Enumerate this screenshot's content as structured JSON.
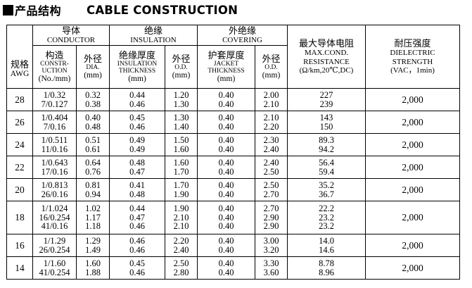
{
  "heading": {
    "cn": "产品结构",
    "en": "CABLE CONSTRUCTION"
  },
  "header": {
    "conductor_cn": "导体",
    "conductor_en": "CONDUCTOR",
    "insulation_cn": "绝缘",
    "insulation_en": "INSULATION",
    "covering_cn": "外绝缘",
    "covering_en": "COVERING",
    "resistance_cn": "最大导体电阻",
    "resistance_en1": "MAX.COND.",
    "resistance_en2": "RESISTANCE",
    "resistance_unit": "(Ω/km,20℃,DC)",
    "dielectric_cn": "耐压强度",
    "dielectric_en1": "DIELECTRIC",
    "dielectric_en2": "STRENGTH",
    "dielectric_unit": "(VAC，1min)",
    "awg_cn": "规格",
    "awg_en": "AWG",
    "constr_cn": "构造",
    "constr_en1": "CONSTR-",
    "constr_en2": "UCTION",
    "constr_unit": "(No./mm)",
    "dia_cn": "外径",
    "dia_en": "DIA.",
    "dia_unit": "(mm)",
    "ins_thk_cn": "绝缘厚度",
    "ins_thk_en1": "INSULATION",
    "ins_thk_en2": "THICKNESS",
    "ins_thk_unit": "(mm)",
    "ins_od_cn": "外径",
    "ins_od_en": "O.D.",
    "ins_od_unit": "(mm)",
    "jkt_thk_cn": "护套厚度",
    "jkt_thk_en1": "JACKET",
    "jkt_thk_en2": "THICKNESS",
    "jkt_thk_unit": "(mm)",
    "jkt_od_cn": "外径",
    "jkt_od_en": "O.D.",
    "jkt_od_unit": "(mm)"
  },
  "rows": [
    {
      "awg": "28",
      "construction": [
        "1/0.32",
        "7/0.127"
      ],
      "dia": [
        "0.32",
        "0.38"
      ],
      "ins_thk": [
        "0.44",
        "0.46"
      ],
      "ins_od": [
        "1.20",
        "1.30"
      ],
      "jkt_thk": [
        "0.40",
        "0.40"
      ],
      "jkt_od": [
        "2.00",
        "2.10"
      ],
      "resistance": [
        "227",
        "239"
      ],
      "dielectric": "2,000"
    },
    {
      "awg": "26",
      "construction": [
        "1/0.404",
        "7/0.16"
      ],
      "dia": [
        "0.40",
        "0.48"
      ],
      "ins_thk": [
        "0.45",
        "0.46"
      ],
      "ins_od": [
        "1.30",
        "1.40"
      ],
      "jkt_thk": [
        "0.40",
        "0.40"
      ],
      "jkt_od": [
        "2.10",
        "2.20"
      ],
      "resistance": [
        "143",
        "150"
      ],
      "dielectric": "2,000"
    },
    {
      "awg": "24",
      "construction": [
        "1/0.511",
        "11/0.16"
      ],
      "dia": [
        "0.51",
        "0.61"
      ],
      "ins_thk": [
        "0.49",
        "0.49"
      ],
      "ins_od": [
        "1.50",
        "1.60"
      ],
      "jkt_thk": [
        "0.40",
        "0.40"
      ],
      "jkt_od": [
        "2.30",
        "2.40"
      ],
      "resistance": [
        "89.3",
        "94.2"
      ],
      "dielectric": "2,000"
    },
    {
      "awg": "22",
      "construction": [
        "1/0.643",
        "17/0.16"
      ],
      "dia": [
        "0.64",
        "0.76"
      ],
      "ins_thk": [
        "0.48",
        "0.47"
      ],
      "ins_od": [
        "1.60",
        "1.70"
      ],
      "jkt_thk": [
        "0.40",
        "0.40"
      ],
      "jkt_od": [
        "2.40",
        "2.50"
      ],
      "resistance": [
        "56.4",
        "59.4"
      ],
      "dielectric": "2,000"
    },
    {
      "awg": "20",
      "construction": [
        "1/0.813",
        "26/0.16"
      ],
      "dia": [
        "0.81",
        "0.94"
      ],
      "ins_thk": [
        "0.41",
        "0.48"
      ],
      "ins_od": [
        "1.70",
        "1.90"
      ],
      "jkt_thk": [
        "0.40",
        "0.40"
      ],
      "jkt_od": [
        "2.50",
        "2.70"
      ],
      "resistance": [
        "35.2",
        "36.7"
      ],
      "dielectric": "2,000"
    },
    {
      "awg": "18",
      "construction": [
        "1/1.024",
        "16/0.254",
        "41/0.16"
      ],
      "dia": [
        "1.02",
        "1.17",
        "1.18"
      ],
      "ins_thk": [
        "0.44",
        "0.47",
        "0.46"
      ],
      "ins_od": [
        "1.90",
        "2.10",
        "2.10"
      ],
      "jkt_thk": [
        "0.40",
        "0.40",
        "0.40"
      ],
      "jkt_od": [
        "2.70",
        "2.90",
        "2.90"
      ],
      "resistance": [
        "22.2",
        "23.2",
        "23.2"
      ],
      "dielectric": "2,000"
    },
    {
      "awg": "16",
      "construction": [
        "1/1.29",
        "26/0.254"
      ],
      "dia": [
        "1.29",
        "1.49"
      ],
      "ins_thk": [
        "0.46",
        "0.46"
      ],
      "ins_od": [
        "2.20",
        "2.40"
      ],
      "jkt_thk": [
        "0.40",
        "0.40"
      ],
      "jkt_od": [
        "3.00",
        "3.20"
      ],
      "resistance": [
        "14.0",
        "14.6"
      ],
      "dielectric": "2,000"
    },
    {
      "awg": "14",
      "construction": [
        "1/1.60",
        "41/0.254"
      ],
      "dia": [
        "1.60",
        "1.88"
      ],
      "ins_thk": [
        "0.45",
        "0.46"
      ],
      "ins_od": [
        "2.50",
        "2.80"
      ],
      "jkt_thk": [
        "0.40",
        "0.40"
      ],
      "jkt_od": [
        "3.30",
        "3.60"
      ],
      "resistance": [
        "8.78",
        "8.96"
      ],
      "dielectric": "2,000"
    }
  ]
}
